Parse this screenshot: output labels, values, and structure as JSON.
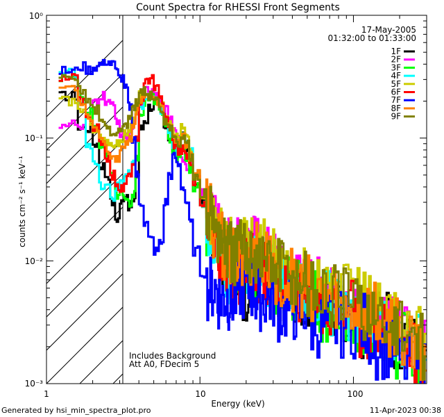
{
  "chart_data": {
    "type": "line",
    "title": "Count Spectra for RHESSI Front Segments",
    "xlabel": "Energy (keV)",
    "ylabel": "counts cm⁻² s⁻¹ keV⁻¹",
    "x_scale": "log",
    "y_scale": "log",
    "xlim": [
      1,
      300
    ],
    "ylim": [
      0.001,
      1
    ],
    "x_ticks": [
      {
        "value": 1,
        "label": "1"
      },
      {
        "value": 10,
        "label": "10"
      },
      {
        "value": 100,
        "label": "100"
      }
    ],
    "y_ticks": [
      {
        "value": 0.001,
        "label": "10⁻³"
      },
      {
        "value": 0.01,
        "label": "10⁻²"
      },
      {
        "value": 0.1,
        "label": "10⁻¹"
      },
      {
        "value": 1,
        "label": "10⁰"
      }
    ],
    "date": "17-May-2005",
    "time_range": "01:32:00 to 01:33:00",
    "annotation_lines": [
      "Includes Background",
      "Att A0, FDecim 5"
    ],
    "hatched_region_max_keV": 3,
    "footer_left": "Generated by hsi_min_spectra_plot.pro",
    "footer_right": "11-Apr-2023 00:38",
    "legend_position": "top-right",
    "series": [
      {
        "name": "1F",
        "color": "#000000",
        "values": [
          0.22,
          0.22,
          0.12,
          0.12,
          0.09,
          0.06,
          0.05,
          0.03,
          0.022,
          0.03,
          0.035,
          0.028,
          0.03,
          0.05,
          0.12,
          0.14,
          0.18,
          0.2,
          0.16,
          0.12,
          0.1,
          0.08,
          0.09,
          0.11,
          0.08,
          0.06,
          0.04,
          0.03,
          0.02,
          0.018,
          0.015,
          0.012,
          0.009,
          0.008,
          0.007,
          0.006,
          0.007,
          0.008,
          0.007,
          0.006,
          0.006,
          0.005,
          0.006,
          0.005,
          0.004,
          0.005,
          0.004,
          0.004,
          0.003,
          0.003,
          0.003,
          0.002,
          0.002,
          0.0015
        ]
      },
      {
        "name": "2F",
        "color": "#ff00ff",
        "values": [
          0.13,
          0.13,
          0.12,
          0.15,
          0.2,
          0.22,
          0.2,
          0.18,
          0.14,
          0.11,
          0.1,
          0.11,
          0.13,
          0.17,
          0.2,
          0.24,
          0.23,
          0.22,
          0.2,
          0.17,
          0.15,
          0.12,
          0.1,
          0.07,
          0.06,
          0.06,
          0.05,
          0.035,
          0.025,
          0.02,
          0.017,
          0.014,
          0.012,
          0.011,
          0.012,
          0.013,
          0.013,
          0.012,
          0.011,
          0.01,
          0.009,
          0.008,
          0.008,
          0.007,
          0.006,
          0.006,
          0.005,
          0.005,
          0.004,
          0.004,
          0.003,
          0.003,
          0.0025,
          0.002
        ]
      },
      {
        "name": "3F",
        "color": "#00ff00",
        "values": [
          0.3,
          0.3,
          0.22,
          0.16,
          0.12,
          0.09,
          0.07,
          0.05,
          0.035,
          0.035,
          0.03,
          0.03,
          0.035,
          0.07,
          0.15,
          0.2,
          0.22,
          0.2,
          0.16,
          0.13,
          0.1,
          0.08,
          0.07,
          0.08,
          0.07,
          0.055,
          0.04,
          0.03,
          0.02,
          0.017,
          0.014,
          0.012,
          0.01,
          0.009,
          0.008,
          0.008,
          0.009,
          0.009,
          0.008,
          0.007,
          0.007,
          0.006,
          0.006,
          0.005,
          0.005,
          0.004,
          0.004,
          0.004,
          0.003,
          0.003,
          0.0025,
          0.002,
          0.002,
          0.0015
        ]
      },
      {
        "name": "4F",
        "color": "#00ffff",
        "values": [
          0.34,
          0.34,
          0.2,
          0.09,
          0.06,
          0.04,
          0.04,
          0.032,
          0.04,
          0.045,
          0.05,
          0.05,
          0.06,
          0.1,
          0.18,
          0.21,
          0.22,
          0.2,
          0.17,
          0.13,
          0.11,
          0.09,
          0.08,
          0.1,
          0.09,
          0.08,
          0.05,
          0.03,
          0.02,
          0.015,
          0.011,
          0.009,
          0.008,
          0.008,
          0.009,
          0.01,
          0.01,
          0.009,
          0.008,
          0.008,
          0.007,
          0.006,
          0.006,
          0.005,
          0.005,
          0.005,
          0.004,
          0.004,
          0.004,
          0.003,
          0.003,
          0.0025,
          0.002,
          0.002
        ]
      },
      {
        "name": "5F",
        "color": "#cccc00",
        "values": [
          0.2,
          0.2,
          0.17,
          0.14,
          0.12,
          0.1,
          0.09,
          0.09,
          0.09,
          0.1,
          0.11,
          0.12,
          0.14,
          0.18,
          0.22,
          0.24,
          0.22,
          0.2,
          0.18,
          0.15,
          0.13,
          0.11,
          0.1,
          0.12,
          0.11,
          0.08,
          0.05,
          0.035,
          0.025,
          0.02,
          0.016,
          0.013,
          0.012,
          0.012,
          0.013,
          0.014,
          0.014,
          0.013,
          0.012,
          0.011,
          0.01,
          0.009,
          0.008,
          0.008,
          0.007,
          0.006,
          0.006,
          0.005,
          0.005,
          0.004,
          0.004,
          0.003,
          0.003,
          0.0025
        ]
      },
      {
        "name": "6F",
        "color": "#ff0000",
        "values": [
          0.32,
          0.32,
          0.2,
          0.15,
          0.12,
          0.09,
          0.07,
          0.05,
          0.04,
          0.04,
          0.045,
          0.05,
          0.06,
          0.1,
          0.2,
          0.28,
          0.3,
          0.25,
          0.2,
          0.15,
          0.12,
          0.09,
          0.08,
          0.08,
          0.07,
          0.06,
          0.045,
          0.03,
          0.02,
          0.015,
          0.012,
          0.01,
          0.009,
          0.008,
          0.008,
          0.009,
          0.009,
          0.008,
          0.008,
          0.007,
          0.006,
          0.006,
          0.006,
          0.005,
          0.005,
          0.004,
          0.004,
          0.004,
          0.003,
          0.003,
          0.003,
          0.0025,
          0.002,
          0.0015
        ]
      },
      {
        "name": "7F",
        "color": "#0000ff",
        "values": [
          0.35,
          0.35,
          0.38,
          0.36,
          0.38,
          0.4,
          0.42,
          0.4,
          0.35,
          0.3,
          0.25,
          0.18,
          0.1,
          0.05,
          0.03,
          0.02,
          0.015,
          0.012,
          0.014,
          0.03,
          0.05,
          0.07,
          0.06,
          0.04,
          0.03,
          0.02,
          0.012,
          0.008,
          0.006,
          0.006,
          0.005,
          0.005,
          0.005,
          0.005,
          0.006,
          0.006,
          0.006,
          0.005,
          0.005,
          0.005,
          0.004,
          0.004,
          0.004,
          0.004,
          0.003,
          0.003,
          0.003,
          0.003,
          0.003,
          0.0025,
          0.002,
          0.002,
          0.0015,
          0.0012
        ]
      },
      {
        "name": "8F",
        "color": "#ff8000",
        "values": [
          0.26,
          0.26,
          0.2,
          0.15,
          0.12,
          0.1,
          0.08,
          0.07,
          0.07,
          0.08,
          0.09,
          0.1,
          0.13,
          0.17,
          0.21,
          0.23,
          0.22,
          0.2,
          0.17,
          0.14,
          0.12,
          0.1,
          0.09,
          0.1,
          0.09,
          0.07,
          0.05,
          0.035,
          0.025,
          0.019,
          0.015,
          0.012,
          0.011,
          0.01,
          0.011,
          0.012,
          0.012,
          0.011,
          0.01,
          0.009,
          0.008,
          0.007,
          0.007,
          0.006,
          0.006,
          0.005,
          0.005,
          0.004,
          0.004,
          0.004,
          0.003,
          0.003,
          0.0025,
          0.002
        ]
      },
      {
        "name": "9F",
        "color": "#808000",
        "values": [
          0.3,
          0.3,
          0.25,
          0.2,
          0.17,
          0.14,
          0.12,
          0.11,
          0.11,
          0.12,
          0.13,
          0.15,
          0.17,
          0.2,
          0.23,
          0.24,
          0.22,
          0.2,
          0.17,
          0.14,
          0.12,
          0.1,
          0.09,
          0.1,
          0.09,
          0.07,
          0.05,
          0.035,
          0.025,
          0.02,
          0.016,
          0.013,
          0.012,
          0.011,
          0.012,
          0.012,
          0.012,
          0.011,
          0.01,
          0.009,
          0.009,
          0.008,
          0.007,
          0.007,
          0.006,
          0.005,
          0.005,
          0.005,
          0.004,
          0.004,
          0.003,
          0.003,
          0.0025,
          0.002
        ]
      }
    ],
    "energy_bins_keV": [
      1.2,
      1.4,
      1.6,
      1.8,
      2.0,
      2.2,
      2.4,
      2.6,
      2.8,
      3.0,
      3.2,
      3.4,
      3.6,
      3.8,
      4.0,
      4.3,
      4.6,
      5.0,
      5.4,
      5.8,
      6.2,
      6.6,
      7.0,
      7.5,
      8.0,
      8.5,
      9.0,
      10.0,
      11.0,
      12.0,
      13.0,
      14.0,
      15.0,
      16.0,
      17.5,
      19.0,
      21.0,
      23.0,
      25.0,
      28.0,
      31.0,
      35.0,
      40.0,
      45.0,
      50.0,
      60.0,
      70.0,
      80.0,
      100.0,
      120.0,
      140.0,
      170.0,
      200.0,
      250.0
    ]
  }
}
